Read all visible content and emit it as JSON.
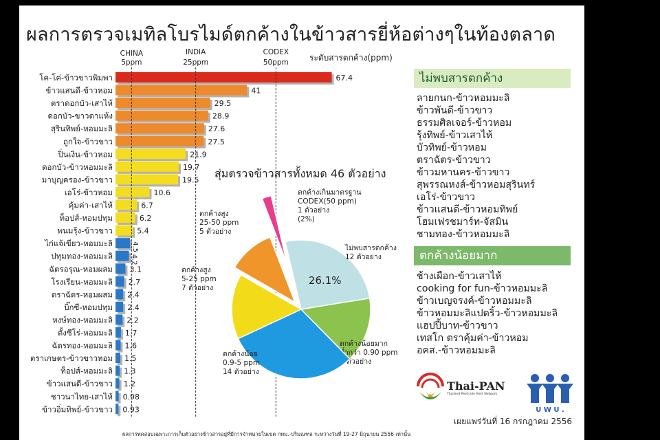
{
  "title": "ผลการตรวจเมทิลโบรไมด์ตกค้างในข้าวสารยี่ห้อต่างๆในท้องตลาด",
  "chart_data": [
    {
      "type": "bar",
      "orientation": "horizontal",
      "value_label": "ระดับสารตกค้าง(ppm)",
      "categories": [
        "โค-โค่-ข้าวขาวพิมพา",
        "ข้าวแสนดี-ข้าวหอม",
        "ตราดอกบัว-เสาไห้",
        "ดอกบัว-ขาวตาแห้ง",
        "สุรินทิพย์-หอมมะลิ",
        "ถูกใจ-ข้าวขาว",
        "ปิ่นเงิน-ข้าวหอม",
        "ดอกบัว-ข้าวหอมมะลิ",
        "มาบุญครอง-ข้าวขาว",
        "เอโร่-ข้าวหอม",
        "คุ้มค่า-เสาไห้",
        "ท็อปส์-หอมปทุม",
        "พนมรุ้ง-ข้าวขาว",
        "ไก่แจ้เขียว-หอมมะลิ",
        "ปทุมทอง-หอมมะลิ",
        "ฉัตรอรุณ-หอมผสม",
        "โรงเรียน-หอมมะลิ",
        "ตราฉัตร-หอมผสม",
        "บิ๊กซี-หอมปทุม",
        "หงษ์ทอง-หอมมะลิ",
        "ตั้งซีโร่-หอมมะลิ",
        "ฉัตรทอง-หอมมะลิ",
        "ตราเกษตร-ข้าวขาวหอม",
        "ท็อปส์-หอมมะลิ",
        "ข้าวแสนดี-ข้าวขาว",
        "ชาวนาไทย-เสาไห้",
        "ข้าวอิ่มทิพย์-ข้าวขาว"
      ],
      "values": [
        67.4,
        41,
        29.5,
        28.9,
        27.6,
        27.5,
        21.9,
        19.7,
        19.5,
        10.6,
        6.7,
        6.2,
        5.4,
        4.5,
        4.2,
        3.1,
        2.7,
        2.4,
        2.4,
        2.2,
        1.7,
        1.6,
        1.5,
        1.3,
        1.2,
        0.98,
        0.93
      ],
      "value_labels": [
        "67.4",
        "41",
        "29.5",
        "28.9",
        "27.6",
        "27.5",
        "21.9",
        "19.7",
        "19.5",
        "10.6",
        "6.7",
        "6.2",
        "5.4",
        "4.5",
        "4.2",
        "3.1",
        "2.7",
        "2.4",
        "2.4",
        "2.2",
        "1.7",
        "1.6",
        "1.5",
        "1.3",
        "1.2",
        "0.98",
        "0.93"
      ],
      "xlim": [
        0,
        72
      ],
      "reference_lines": [
        {
          "name": "CHINA",
          "limit": "5ppm",
          "value": 5
        },
        {
          "name": "INDIA",
          "limit": "25ppm",
          "value": 25
        },
        {
          "name": "CODEX",
          "limit": "50ppm",
          "value": 50
        }
      ],
      "colors": {
        "red": "#dc2a1c",
        "orange": "#ec8a2c",
        "yellow": "#f4dc1e",
        "blue": "#2a78c8"
      }
    },
    {
      "type": "pie",
      "title": "สุ่มตรวจข้าวสารทั้งหมด 46 ตัวอย่าง",
      "slices": [
        {
          "lines": [
            "ไม่พบสารตกค้าง",
            "12 ตัวอย่าง"
          ],
          "count": 12,
          "pct_label": "26.1%",
          "color": "#bfe1e6",
          "explode": 0
        },
        {
          "lines": [
            "ตกค้างน้อยมาก",
            "ต่ำกว่า 0.90 ppm",
            "7 ตัวอย่าง"
          ],
          "count": 7,
          "color": "#8cc24e",
          "explode": 0
        },
        {
          "lines": [
            "ตกค้างน้อย",
            "0.9-5 ppm",
            "14 ตัวอย่าง"
          ],
          "count": 14,
          "color": "#1f9ae0",
          "explode": 0
        },
        {
          "lines": [
            "ตกค้างสูง",
            "5-25 ppm",
            "7 ตัวอย่าง"
          ],
          "count": 7,
          "color": "#f2dc1a",
          "explode": 0
        },
        {
          "lines": [
            "ตกค้างสูง",
            "25-50 ppm",
            "5 ตัวอย่าง"
          ],
          "count": 5,
          "color": "#f0952a",
          "explode": 1
        },
        {
          "lines": [
            "ตกค้างเกินมาตรฐาน",
            "CODEX(50 ppm)",
            "1 ตัวอย่าง",
            "(2%)"
          ],
          "count": 1,
          "color": "#e83c8c",
          "explode": 2
        }
      ]
    }
  ],
  "box1": {
    "title": "ไม่พบสารตกค้าง",
    "items": [
      "ลายกนก-ข้าวหอมมะลิ",
      "ข้าวพันดี-ข้าวขาว",
      "ธรรมศิลเจอร์-ข้าวหอม",
      "รุ้งทิพย์-ข้าวเสาไห้",
      "บัวทิพย์-ข้าวหอม",
      "ตราฉัตร-ข้าวขาว",
      "ข้าวมหานคร-ข้าวขาว",
      "สุพรรณหงส์-ข้าวหอมสุรินทร์",
      "เอโร่-ข้าวขาว",
      "ข้าวแสนดี-ข้าวหอมทิพย์",
      "โฮมเฟรชมาร์ท-จัสมิน",
      "ชามทอง-ข้าวหอมมะลิ"
    ]
  },
  "box2": {
    "title": "ตกค้างน้อยมาก",
    "items": [
      "ช้างเผือก-ข้าวเสาไห้",
      "cooking for fun-ข้าวหอมมะลิ",
      "ข้าวเบญจรงค์-ข้าวหอมมะลิ",
      "ข้าวหอมมะลิแปดริ้ว-ข้าวหอมมะลิ",
      "แฮปปี้บาท-ข้าวขาว",
      "เทสโก ตราคุ้มค่า-ข้าวหอม",
      "อคส.-ข้าวหอมมะลิ"
    ]
  },
  "logos": {
    "thaipan": "Thai-PAN",
    "thaipan_sub": "Thailand Pesticide Alert Network",
    "wwu_letters": [
      "U",
      "W",
      "U",
      "."
    ]
  },
  "date_text": "เผยแพร่วันที่ 16 กรกฎาคม 2556",
  "footnote": "ผลการทดสอบเฉพาะการเก็บตัวอย่างข้าวสารอยู่ที่มีการจำหน่ายในเขต กทม.-ปริมณฑล ระหว่างวันที่ 19-27 มิถุนายน 2556 เท่านั้น"
}
